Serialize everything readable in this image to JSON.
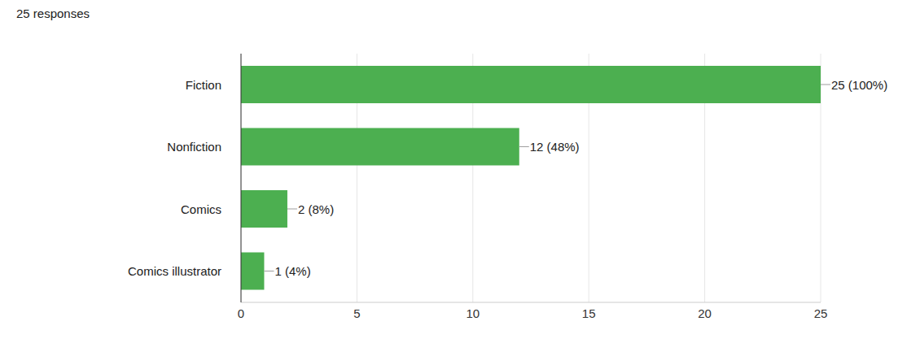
{
  "chart_data": {
    "type": "bar",
    "title": "25 responses",
    "orientation": "horizontal",
    "categories": [
      "Fiction",
      "Nonfiction",
      "Comics",
      "Comics illustrator"
    ],
    "values": [
      25,
      12,
      2,
      1
    ],
    "value_labels": [
      "25 (100%)",
      "12 (48%)",
      "2 (8%)",
      "1 (4%)"
    ],
    "data_labels": true,
    "color": "#4caf50",
    "xlim": [
      0,
      25
    ],
    "xticks": [
      0,
      5,
      10,
      15,
      20,
      25
    ],
    "grid": true
  }
}
